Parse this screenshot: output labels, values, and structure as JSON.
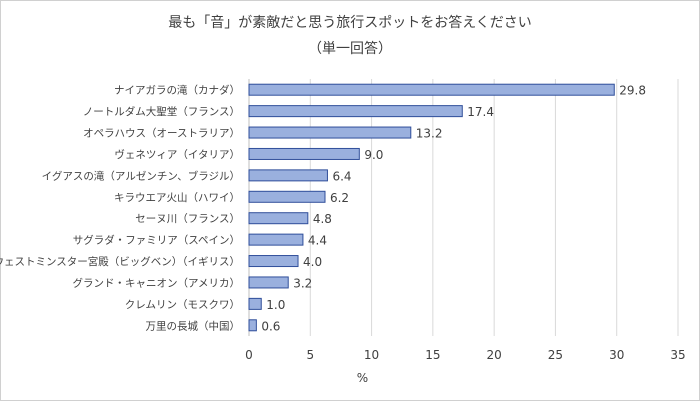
{
  "chart_data": {
    "type": "bar",
    "orientation": "horizontal",
    "title": "最も「音」が素敵だと思う旅行スポットをお答えください",
    "subtitle": "（単一回答）",
    "xlabel": "%",
    "ylabel": "",
    "xlim": [
      0,
      35
    ],
    "xticks": [
      0,
      5,
      10,
      15,
      20,
      25,
      30,
      35
    ],
    "grid": true,
    "categories": [
      "ナイアガラの滝（カナダ）",
      "ノートルダム大聖堂（フランス）",
      "オペラハウス（オーストラリア）",
      "ヴェネツィア（イタリア）",
      "イグアスの滝（アルゼンチン、ブラジル）",
      "キラウエア火山（ハワイ）",
      "セーヌ川（フランス）",
      "サグラダ・ファミリア（スペイン）",
      "ウェストミンスター宮殿（ビッグベン）（イギリス）",
      "グランド・キャニオン（アメリカ）",
      "クレムリン（モスクワ）",
      "万里の長城（中国）"
    ],
    "values": [
      29.8,
      17.4,
      13.2,
      9.0,
      6.4,
      6.2,
      4.8,
      4.4,
      4.0,
      3.2,
      1.0,
      0.6
    ],
    "data_labels": [
      "29.8",
      "17.4",
      "13.2",
      "9.0",
      "6.4",
      "6.2",
      "4.8",
      "4.4",
      "4.0",
      "3.2",
      "1.0",
      "0.6"
    ],
    "colors": {
      "bar_fill": "#9AB0DE",
      "bar_border": "#2F4E9A",
      "grid": "#d9d9d9"
    }
  }
}
